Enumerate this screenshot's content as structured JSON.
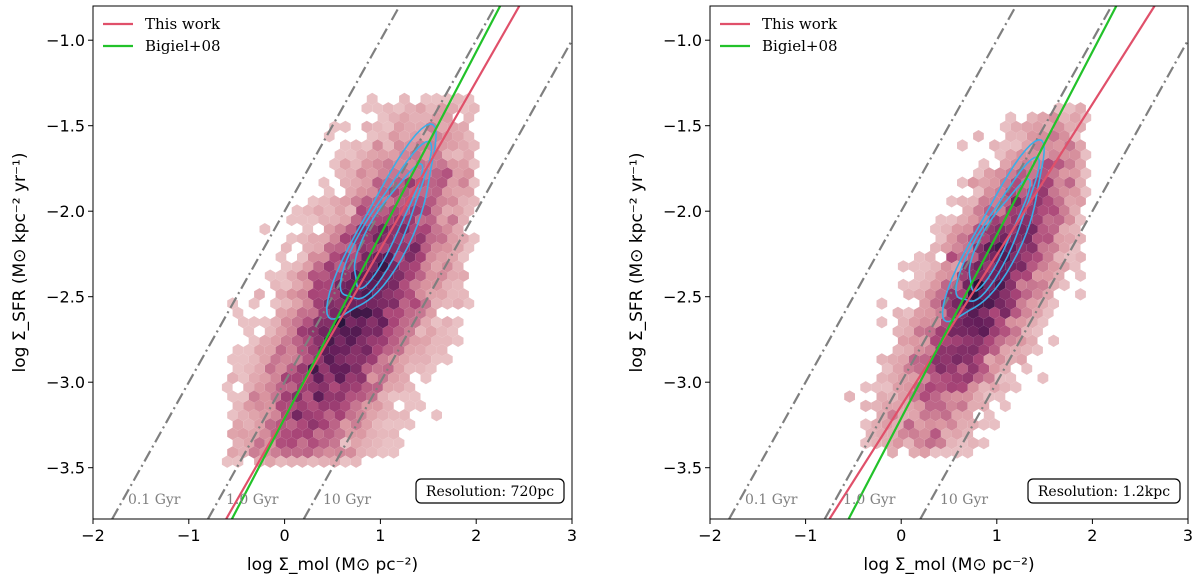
{
  "chart_data": [
    {
      "type": "scatter",
      "panel": "left",
      "xlabel": "log Σ_mol (M⊙ pc⁻²)",
      "ylabel": "log Σ_SFR (M⊙ kpc⁻² yr⁻¹)",
      "xlim": [
        -2,
        3
      ],
      "ylim": [
        -3.8,
        -0.8
      ],
      "x_ticks": [
        "−2",
        "−1",
        "0",
        "1",
        "2",
        "3"
      ],
      "y_ticks": [
        "−1.0",
        "−1.5",
        "−2.0",
        "−2.5",
        "−3.0",
        "−3.5"
      ],
      "legend": {
        "position": "top-left",
        "entries": [
          {
            "label": "This work",
            "color": "#e0506a"
          },
          {
            "label": "Bigiel+08",
            "color": "#22c22a"
          }
        ]
      },
      "fit_lines": [
        {
          "name": "This work",
          "x": [
            -0.61,
            2.45
          ],
          "y": [
            -3.8,
            -0.8
          ],
          "color": "#e0506a"
        },
        {
          "name": "Bigiel+08",
          "x": [
            -0.55,
            2.25
          ],
          "y": [
            -3.8,
            -0.8
          ],
          "color": "#22c22a"
        }
      ],
      "depletion_lines": [
        {
          "label": "0.1 Gyr",
          "x": [
            -1.8,
            1.2
          ],
          "y": [
            -3.8,
            -0.8
          ]
        },
        {
          "label": "1.0 Gyr",
          "x": [
            -0.8,
            2.2
          ],
          "y": [
            -3.8,
            -0.8
          ]
        },
        {
          "label": "10 Gyr",
          "x": [
            0.2,
            3.0
          ],
          "y": [
            -3.8,
            -1.0
          ]
        }
      ],
      "density": {
        "center": [
          0.75,
          -2.6
        ],
        "spread_major": 0.75,
        "spread_minor": 0.28,
        "slope": 1.0,
        "x_range": [
          -0.6,
          1.95
        ],
        "y_range": [
          -3.45,
          -1.35
        ]
      },
      "contours": {
        "color": "#3aaee8",
        "center": [
          1.05,
          -2.1
        ],
        "levels": [
          {
            "a": 0.75,
            "b": 0.22
          },
          {
            "a": 0.62,
            "b": 0.17
          },
          {
            "a": 0.48,
            "b": 0.12
          }
        ]
      },
      "annotation": "Resolution: 720pc",
      "grid": false
    },
    {
      "type": "scatter",
      "panel": "right",
      "xlabel": "log Σ_mol (M⊙ pc⁻²)",
      "ylabel": "log Σ_SFR (M⊙ kpc⁻² yr⁻¹)",
      "xlim": [
        -2,
        3
      ],
      "ylim": [
        -3.8,
        -0.8
      ],
      "x_ticks": [
        "−2",
        "−1",
        "0",
        "1",
        "2",
        "3"
      ],
      "y_ticks": [
        "−1.0",
        "−1.5",
        "−2.0",
        "−2.5",
        "−3.0",
        "−3.5"
      ],
      "legend": {
        "position": "top-left",
        "entries": [
          {
            "label": "This work",
            "color": "#e0506a"
          },
          {
            "label": "Bigiel+08",
            "color": "#22c22a"
          }
        ]
      },
      "fit_lines": [
        {
          "name": "This work",
          "x": [
            -0.75,
            2.65
          ],
          "y": [
            -3.8,
            -0.8
          ],
          "color": "#e0506a"
        },
        {
          "name": "Bigiel+08",
          "x": [
            -0.55,
            2.25
          ],
          "y": [
            -3.8,
            -0.8
          ],
          "color": "#22c22a"
        }
      ],
      "depletion_lines": [
        {
          "label": "0.1 Gyr",
          "x": [
            -1.8,
            1.2
          ],
          "y": [
            -3.8,
            -0.8
          ]
        },
        {
          "label": "1.0 Gyr",
          "x": [
            -0.8,
            2.2
          ],
          "y": [
            -3.8,
            -0.8
          ]
        },
        {
          "label": "10 Gyr",
          "x": [
            0.2,
            3.0
          ],
          "y": [
            -3.8,
            -1.0
          ]
        }
      ],
      "density": {
        "center": [
          0.9,
          -2.45
        ],
        "spread_major": 0.65,
        "spread_minor": 0.22,
        "slope": 1.0,
        "x_range": [
          -0.6,
          1.9
        ],
        "y_range": [
          -3.4,
          -1.4
        ]
      },
      "contours": {
        "color": "#3aaee8",
        "center": [
          1.0,
          -2.15
        ],
        "levels": [
          {
            "a": 0.7,
            "b": 0.2
          },
          {
            "a": 0.57,
            "b": 0.15
          },
          {
            "a": 0.43,
            "b": 0.11
          }
        ]
      },
      "annotation": "Resolution: 1.2kpc",
      "grid": false
    }
  ]
}
